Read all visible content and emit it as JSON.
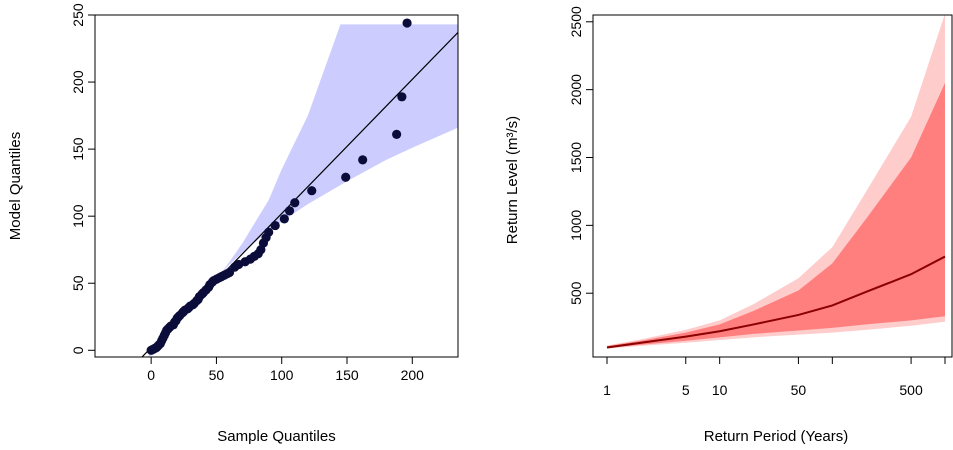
{
  "chart_data": [
    {
      "type": "scatter",
      "xlabel": "Sample Quantiles",
      "ylabel": "Model Quantiles",
      "xlim": [
        -43,
        235
      ],
      "ylim": [
        -5,
        250
      ],
      "xticks": [
        0,
        50,
        100,
        150,
        200
      ],
      "yticks": [
        0,
        50,
        100,
        150,
        200,
        250
      ],
      "colors": {
        "band": "#ccccff",
        "points": "#0b0c3a",
        "line": "#000000"
      },
      "reference_line": {
        "x": [
          -10,
          235
        ],
        "y": [
          -8,
          237
        ]
      },
      "confidence_band": {
        "upper": [
          [
            -3,
            -5
          ],
          [
            10,
            10
          ],
          [
            20,
            22
          ],
          [
            30,
            32
          ],
          [
            40,
            42
          ],
          [
            50,
            53
          ],
          [
            60,
            66
          ],
          [
            70,
            80
          ],
          [
            80,
            96
          ],
          [
            90,
            112
          ],
          [
            100,
            135
          ],
          [
            120,
            175
          ],
          [
            145,
            243
          ],
          [
            235,
            243
          ]
        ],
        "lower": [
          [
            235,
            166
          ],
          [
            200,
            151
          ],
          [
            180,
            142
          ],
          [
            150,
            126
          ],
          [
            120,
            109
          ],
          [
            100,
            96
          ],
          [
            85,
            85
          ],
          [
            70,
            73
          ],
          [
            60,
            64
          ],
          [
            50,
            54
          ],
          [
            40,
            43
          ],
          [
            30,
            31
          ],
          [
            20,
            20
          ],
          [
            10,
            8
          ],
          [
            5,
            2
          ],
          [
            2,
            -3
          ],
          [
            -3,
            -5
          ]
        ]
      },
      "points": [
        [
          0,
          0
        ],
        [
          1,
          0.5
        ],
        [
          2,
          1
        ],
        [
          3,
          1.5
        ],
        [
          4,
          2
        ],
        [
          5,
          3
        ],
        [
          6,
          4
        ],
        [
          7,
          5
        ],
        [
          8,
          7
        ],
        [
          9,
          9
        ],
        [
          10,
          11
        ],
        [
          11,
          13
        ],
        [
          12,
          15
        ],
        [
          13,
          16
        ],
        [
          14,
          17
        ],
        [
          15,
          18
        ],
        [
          17,
          19
        ],
        [
          18,
          21
        ],
        [
          19,
          22
        ],
        [
          20,
          24
        ],
        [
          21,
          25
        ],
        [
          22,
          26
        ],
        [
          24,
          28
        ],
        [
          25,
          29
        ],
        [
          26,
          30
        ],
        [
          28,
          31
        ],
        [
          29,
          32
        ],
        [
          30,
          33
        ],
        [
          32,
          34
        ],
        [
          33,
          35
        ],
        [
          35,
          37
        ],
        [
          36,
          38
        ],
        [
          37,
          40
        ],
        [
          39,
          42
        ],
        [
          40,
          43
        ],
        [
          42,
          45
        ],
        [
          44,
          47
        ],
        [
          45,
          49
        ],
        [
          47,
          51
        ],
        [
          48,
          52
        ],
        [
          50,
          53
        ],
        [
          52,
          54
        ],
        [
          54,
          55
        ],
        [
          56,
          56
        ],
        [
          58,
          57
        ],
        [
          60,
          58
        ],
        [
          64,
          62
        ],
        [
          67,
          64
        ],
        [
          72,
          66
        ],
        [
          76,
          68
        ],
        [
          79,
          70
        ],
        [
          82,
          72
        ],
        [
          84,
          75
        ],
        [
          86,
          80
        ],
        [
          88,
          84
        ],
        [
          90,
          88
        ],
        [
          95,
          93
        ],
        [
          102,
          98
        ],
        [
          106,
          104
        ],
        [
          110,
          110
        ],
        [
          123,
          119
        ],
        [
          149,
          129
        ],
        [
          162,
          142
        ],
        [
          188,
          161
        ],
        [
          192,
          189
        ],
        [
          196,
          244
        ]
      ]
    },
    {
      "type": "area",
      "xlabel": "Return Period (Years)",
      "ylabel": "Return Level (m³/s)",
      "x_scale": "log",
      "xlim": [
        1,
        1000
      ],
      "ylim": [
        30,
        2550
      ],
      "xticks": [
        1,
        5,
        10,
        50,
        500
      ],
      "yticks": [
        500,
        1000,
        1500,
        2000,
        2500
      ],
      "colors": {
        "outer_band": "#ffcccc",
        "inner_band": "#ff7f7f",
        "line": "#8b0000"
      },
      "x": [
        1,
        2,
        5,
        10,
        20,
        50,
        100,
        200,
        500,
        1000
      ],
      "series": [
        {
          "values": [
            100,
            135,
            180,
            220,
            270,
            340,
            410,
            510,
            640,
            770
          ]
        }
      ],
      "inner_band": {
        "upper": [
          110,
          150,
          210,
          270,
          370,
          520,
          720,
          1050,
          1500,
          2050
        ],
        "lower": [
          95,
          120,
          150,
          175,
          200,
          225,
          245,
          270,
          300,
          330
        ]
      },
      "outer_band": {
        "upper": [
          115,
          160,
          230,
          300,
          420,
          610,
          840,
          1250,
          1800,
          2560
        ],
        "lower": [
          92,
          112,
          135,
          155,
          175,
          195,
          210,
          230,
          260,
          290
        ]
      }
    }
  ]
}
